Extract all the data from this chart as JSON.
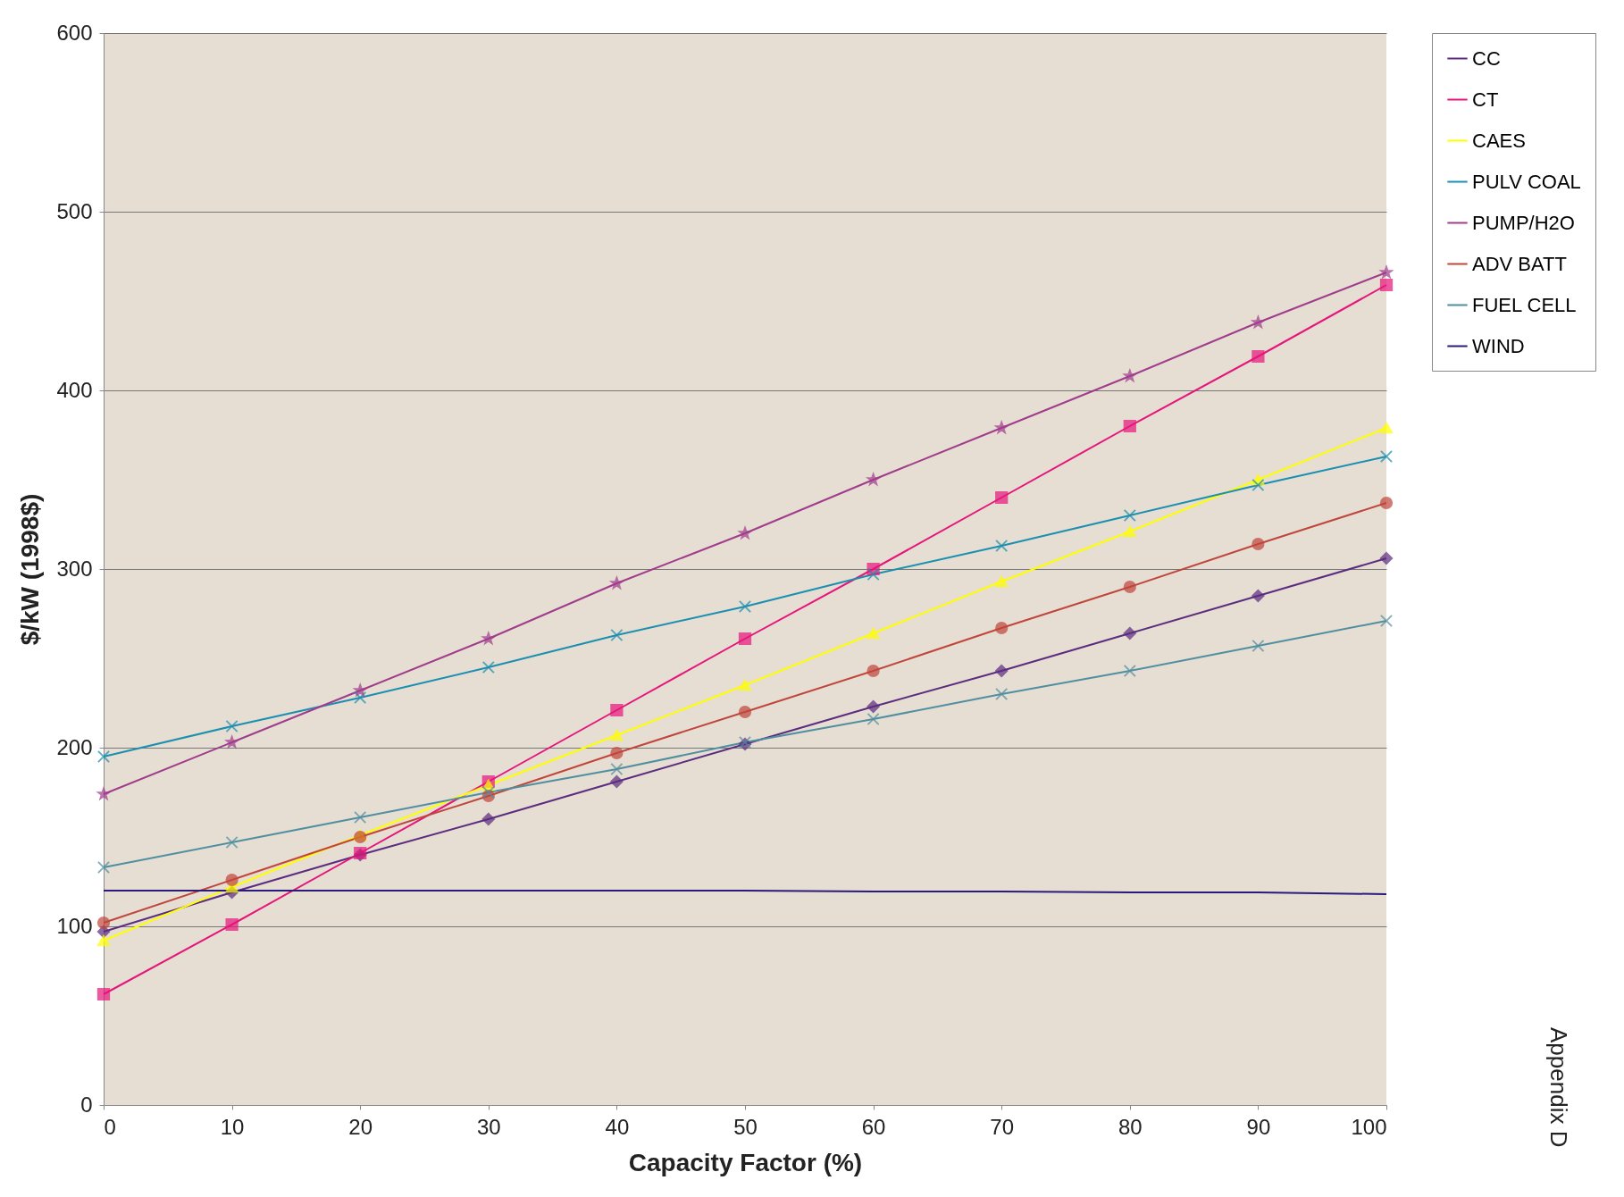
{
  "chart_data": {
    "type": "line",
    "xlabel": "Capacity Factor (%)",
    "ylabel": "$/kW (1998$)",
    "x": [
      0,
      10,
      20,
      30,
      40,
      50,
      60,
      70,
      80,
      90,
      100
    ],
    "xlim": [
      0,
      100
    ],
    "xticks": [
      0,
      10,
      20,
      30,
      40,
      50,
      60,
      70,
      80,
      90,
      100
    ],
    "ylim": [
      0,
      600
    ],
    "yticks": [
      0,
      100,
      200,
      300,
      400,
      500,
      600
    ],
    "grid": "y",
    "legend": "right",
    "annotations": [
      "Appendix D"
    ],
    "series": [
      {
        "name": "CC",
        "color": "#5b2c7f",
        "marker": "diamond",
        "values": [
          97,
          119,
          140,
          160,
          181,
          202,
          223,
          243,
          264,
          285,
          306
        ]
      },
      {
        "name": "CT",
        "color": "#e6157a",
        "marker": "square",
        "values": [
          62,
          101,
          141,
          181,
          221,
          261,
          300,
          340,
          380,
          419,
          459
        ]
      },
      {
        "name": "CAES",
        "color": "#ffff00",
        "marker": "triangle",
        "values": [
          92,
          122,
          151,
          179,
          207,
          235,
          264,
          293,
          321,
          350,
          379
        ]
      },
      {
        "name": "PULV COAL",
        "color": "#1a8fb0",
        "marker": "cross",
        "values": [
          195,
          212,
          228,
          245,
          263,
          279,
          297,
          313,
          330,
          347,
          363
        ]
      },
      {
        "name": "PUMP/H2O",
        "color": "#a03c8c",
        "marker": "star",
        "values": [
          174,
          203,
          232,
          261,
          292,
          320,
          350,
          379,
          408,
          438,
          466
        ]
      },
      {
        "name": "ADV BATT",
        "color": "#c0463c",
        "marker": "circle",
        "values": [
          102,
          126,
          150,
          173,
          197,
          220,
          243,
          267,
          290,
          314,
          337
        ]
      },
      {
        "name": "FUEL CELL",
        "color": "#4f8fa0",
        "marker": "cross",
        "values": [
          133,
          147,
          161,
          175,
          188,
          203,
          216,
          230,
          243,
          257,
          271
        ]
      },
      {
        "name": "WIND",
        "color": "#2a1a7a",
        "marker": "none",
        "values": [
          120,
          120,
          120,
          120,
          120,
          120,
          119.5,
          119.5,
          119,
          119,
          118
        ]
      }
    ]
  }
}
